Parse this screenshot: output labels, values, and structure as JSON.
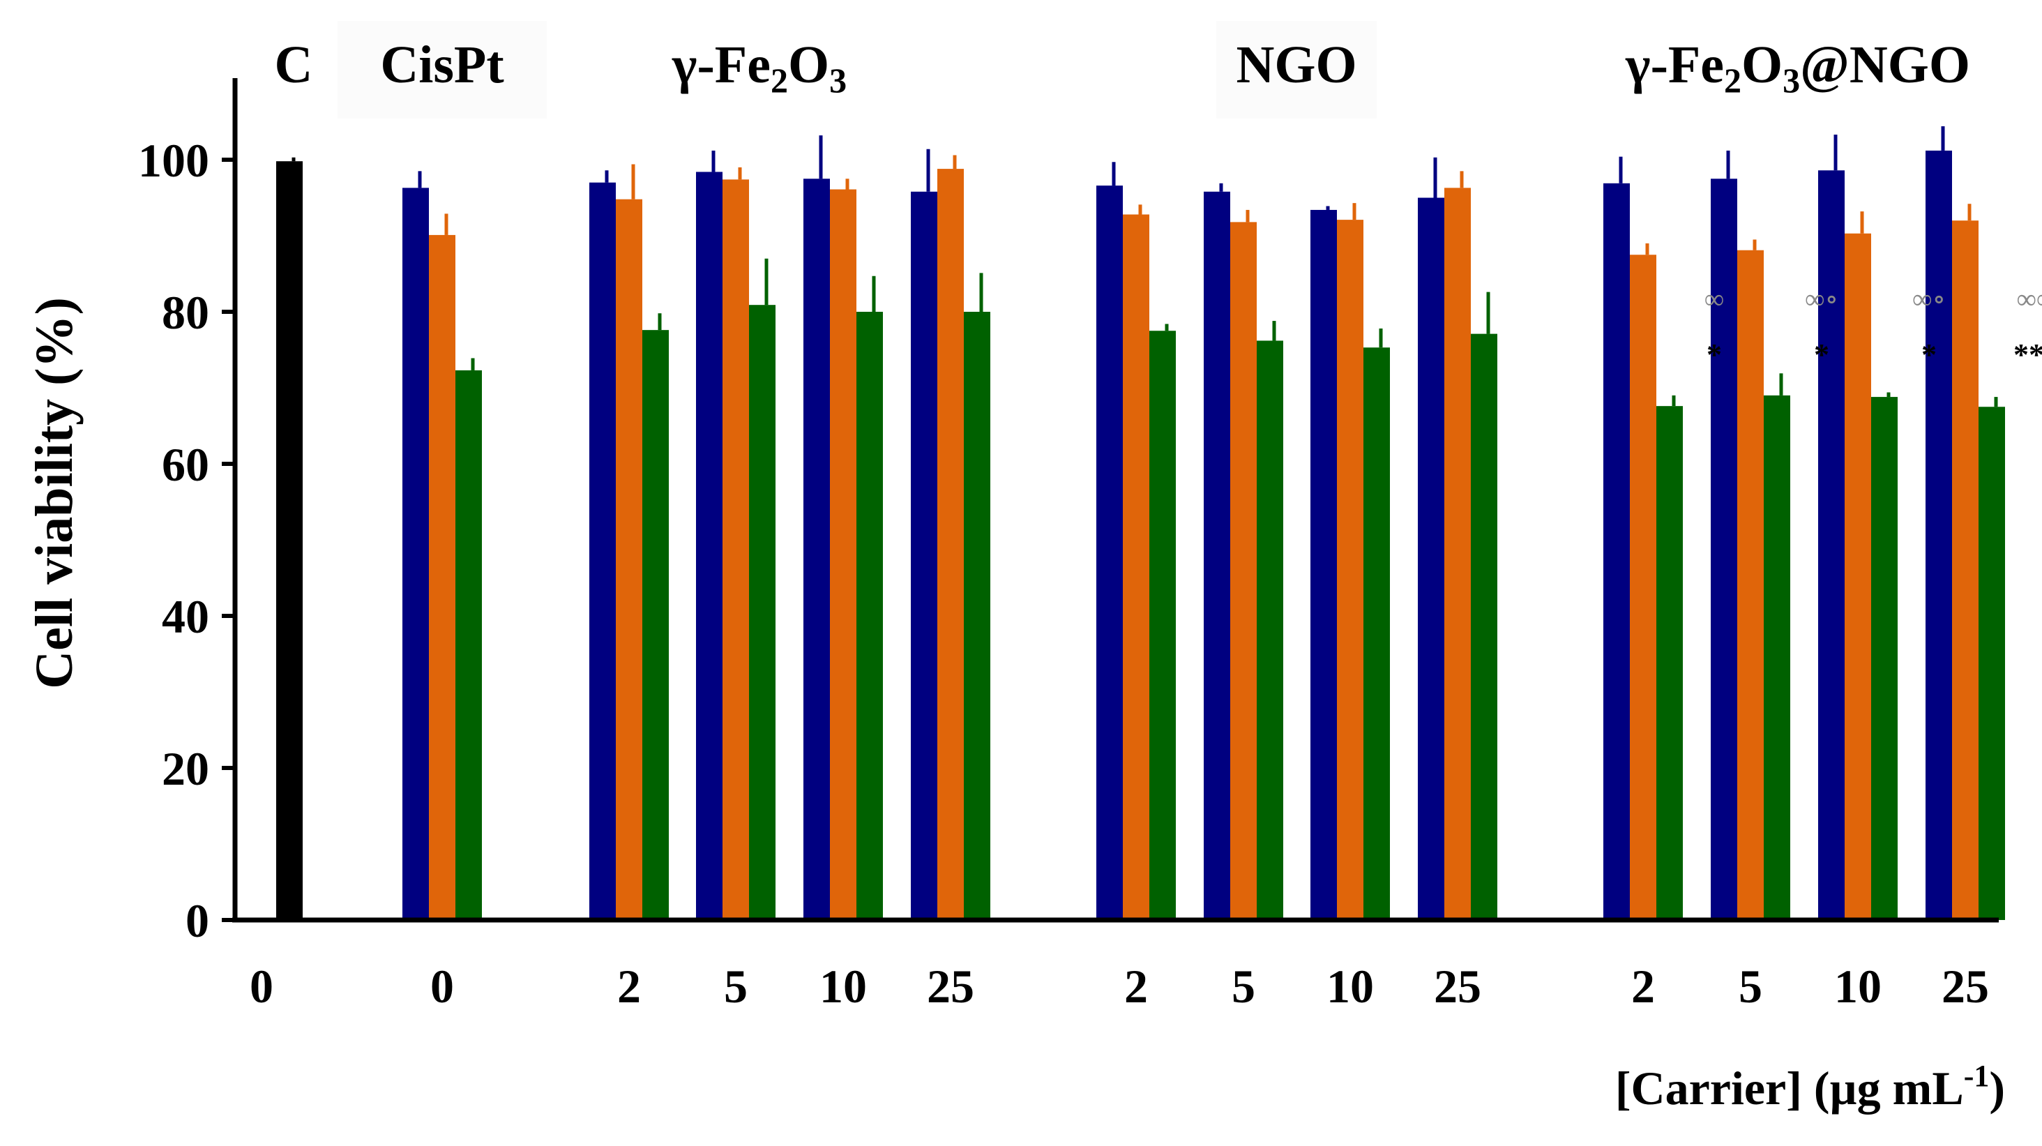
{
  "chart_data": {
    "type": "bar",
    "ylabel": "Cell viability (%)",
    "xlabel": "[Carrier] (µg mL",
    "xlabel_sup": "-1",
    "xlabel_close": ")",
    "ylim": [
      0,
      110
    ],
    "yticks": [
      "0",
      "20",
      "40",
      "60",
      "80",
      "100"
    ],
    "colors": {
      "control": "#000000",
      "s1": "#000080",
      "s2": "#e0650a",
      "s3": "#006100"
    },
    "groups": [
      {
        "name": "C",
        "label_parts": [
          {
            "t": "C"
          }
        ]
      },
      {
        "name": "CisPt",
        "label_parts": [
          {
            "t": "CisPt"
          }
        ]
      },
      {
        "name": "γ-Fe2O3",
        "label_parts": [
          {
            "t": "γ-Fe"
          },
          {
            "t": "2",
            "sub": true
          },
          {
            "t": "O"
          },
          {
            "t": "3",
            "sub": true
          }
        ]
      },
      {
        "name": "NGO",
        "label_parts": [
          {
            "t": "NGO"
          }
        ]
      },
      {
        "name": "γ-Fe2O3@NGO",
        "label_parts": [
          {
            "t": "γ-Fe"
          },
          {
            "t": "2",
            "sub": true
          },
          {
            "t": "O"
          },
          {
            "t": "3",
            "sub": true
          },
          {
            "t": "@NGO"
          }
        ]
      }
    ],
    "clusters": [
      {
        "group": "C",
        "conc": "0",
        "values": [
          99.8
        ],
        "errors": [
          0.5
        ],
        "annot_top": "",
        "annot_bottom": ""
      },
      {
        "group": "CisPt",
        "conc": "0",
        "values": [
          96.3,
          90.1,
          72.3
        ],
        "errors": [
          2.2,
          2.8,
          1.6
        ],
        "annot_top": "",
        "annot_bottom": ""
      },
      {
        "group": "γ-Fe2O3",
        "conc": "2",
        "values": [
          97.0,
          94.8,
          77.6
        ],
        "errors": [
          1.6,
          4.6,
          2.2
        ],
        "annot_top": "",
        "annot_bottom": ""
      },
      {
        "group": "γ-Fe2O3",
        "conc": "5",
        "values": [
          98.4,
          97.4,
          80.9
        ],
        "errors": [
          2.8,
          1.6,
          6.1
        ],
        "annot_top": "",
        "annot_bottom": ""
      },
      {
        "group": "γ-Fe2O3",
        "conc": "10",
        "values": [
          97.5,
          96.1,
          80.0
        ],
        "errors": [
          5.7,
          1.4,
          4.7
        ],
        "annot_top": "",
        "annot_bottom": ""
      },
      {
        "group": "γ-Fe2O3",
        "conc": "25",
        "values": [
          95.8,
          98.8,
          80.0
        ],
        "errors": [
          5.6,
          1.8,
          5.1
        ],
        "annot_top": "",
        "annot_bottom": ""
      },
      {
        "group": "NGO",
        "conc": "2",
        "values": [
          96.6,
          92.8,
          77.5
        ],
        "errors": [
          3.1,
          1.3,
          0.9
        ],
        "annot_top": "",
        "annot_bottom": ""
      },
      {
        "group": "NGO",
        "conc": "5",
        "values": [
          95.8,
          91.8,
          76.2
        ],
        "errors": [
          1.1,
          1.6,
          2.6
        ],
        "annot_top": "",
        "annot_bottom": ""
      },
      {
        "group": "NGO",
        "conc": "10",
        "values": [
          93.4,
          92.1,
          75.3
        ],
        "errors": [
          0.5,
          2.2,
          2.5
        ],
        "annot_top": "",
        "annot_bottom": ""
      },
      {
        "group": "NGO",
        "conc": "25",
        "values": [
          95.0,
          96.3,
          77.1
        ],
        "errors": [
          5.3,
          2.2,
          5.5
        ],
        "annot_top": "",
        "annot_bottom": ""
      },
      {
        "group": "γ-Fe2O3@NGO",
        "conc": "2",
        "values": [
          96.9,
          87.5,
          67.6
        ],
        "errors": [
          3.5,
          1.5,
          1.4
        ],
        "annot_top": "∞",
        "annot_bottom": "*"
      },
      {
        "group": "γ-Fe2O3@NGO",
        "conc": "5",
        "values": [
          97.5,
          88.1,
          69.0
        ],
        "errors": [
          3.7,
          1.4,
          2.9
        ],
        "annot_top": "∞∘",
        "annot_bottom": "*"
      },
      {
        "group": "γ-Fe2O3@NGO",
        "conc": "10",
        "values": [
          98.6,
          90.3,
          68.8
        ],
        "errors": [
          4.7,
          2.9,
          0.6
        ],
        "annot_top": "∞∘",
        "annot_bottom": "*"
      },
      {
        "group": "γ-Fe2O3@NGO",
        "conc": "25",
        "values": [
          101.2,
          92.0,
          67.5
        ],
        "errors": [
          3.2,
          2.2,
          1.3
        ],
        "annot_top": "∞∞",
        "annot_bottom": "***"
      }
    ]
  }
}
